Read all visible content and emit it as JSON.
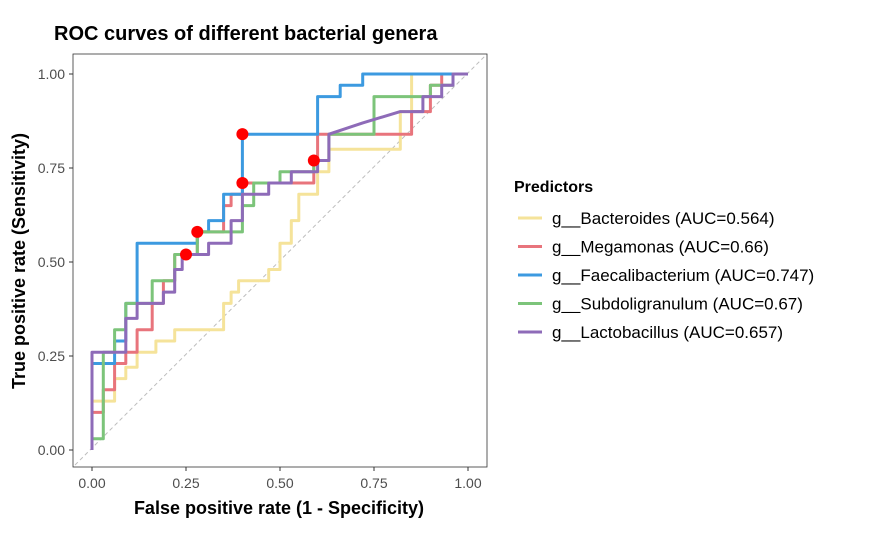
{
  "chart_data": {
    "type": "line",
    "title": "ROC curves of different bacterial genera",
    "xlabel": "False positive rate (1 - Specificity)",
    "ylabel": "True positive rate (Sensitivity)",
    "xlim": [
      0,
      1
    ],
    "ylim": [
      0,
      1
    ],
    "xticks": [
      0,
      0.25,
      0.5,
      0.75,
      1
    ],
    "yticks": [
      0,
      0.25,
      0.5,
      0.75,
      1
    ],
    "xtick_labels": [
      "0.00",
      "0.25",
      "0.50",
      "0.75",
      "1.00"
    ],
    "ytick_labels": [
      "0.00",
      "0.25",
      "0.50",
      "0.75",
      "1.00"
    ],
    "grid": false,
    "diagonal_reference": true,
    "legend": {
      "title": "Predictors",
      "position": "right"
    },
    "series": [
      {
        "name": "g__Bacteroides (AUC=0.564)",
        "color": "#F5E39A",
        "points": [
          [
            0,
            0
          ],
          [
            0,
            0.13
          ],
          [
            0.02,
            0.13
          ],
          [
            0.02,
            0.13
          ],
          [
            0.06,
            0.13
          ],
          [
            0.06,
            0.19
          ],
          [
            0.09,
            0.19
          ],
          [
            0.09,
            0.22
          ],
          [
            0.12,
            0.22
          ],
          [
            0.12,
            0.26
          ],
          [
            0.17,
            0.26
          ],
          [
            0.17,
            0.29
          ],
          [
            0.22,
            0.29
          ],
          [
            0.22,
            0.32
          ],
          [
            0.35,
            0.32
          ],
          [
            0.35,
            0.39
          ],
          [
            0.37,
            0.39
          ],
          [
            0.37,
            0.42
          ],
          [
            0.39,
            0.42
          ],
          [
            0.39,
            0.45
          ],
          [
            0.47,
            0.45
          ],
          [
            0.47,
            0.48
          ],
          [
            0.5,
            0.48
          ],
          [
            0.5,
            0.55
          ],
          [
            0.53,
            0.55
          ],
          [
            0.53,
            0.61
          ],
          [
            0.55,
            0.61
          ],
          [
            0.55,
            0.68
          ],
          [
            0.6,
            0.68
          ],
          [
            0.6,
            0.74
          ],
          [
            0.63,
            0.74
          ],
          [
            0.63,
            0.8
          ],
          [
            0.82,
            0.8
          ],
          [
            0.82,
            0.9
          ],
          [
            0.85,
            0.9
          ],
          [
            0.85,
            1
          ],
          [
            1,
            1
          ]
        ]
      },
      {
        "name": "g__Megamonas (AUC=0.66)",
        "color": "#E8747C",
        "points": [
          [
            0,
            0
          ],
          [
            0,
            0.1
          ],
          [
            0.03,
            0.1
          ],
          [
            0.03,
            0.16
          ],
          [
            0.06,
            0.16
          ],
          [
            0.06,
            0.23
          ],
          [
            0.09,
            0.23
          ],
          [
            0.09,
            0.26
          ],
          [
            0.12,
            0.26
          ],
          [
            0.12,
            0.32
          ],
          [
            0.16,
            0.32
          ],
          [
            0.16,
            0.39
          ],
          [
            0.19,
            0.39
          ],
          [
            0.19,
            0.45
          ],
          [
            0.22,
            0.45
          ],
          [
            0.22,
            0.52
          ],
          [
            0.28,
            0.52
          ],
          [
            0.28,
            0.58
          ],
          [
            0.35,
            0.58
          ],
          [
            0.35,
            0.65
          ],
          [
            0.37,
            0.65
          ],
          [
            0.37,
            0.68
          ],
          [
            0.4,
            0.68
          ],
          [
            0.4,
            0.71
          ],
          [
            0.43,
            0.71
          ],
          [
            0.43,
            0.71
          ],
          [
            0.59,
            0.71
          ],
          [
            0.59,
            0.77
          ],
          [
            0.6,
            0.77
          ],
          [
            0.6,
            0.84
          ],
          [
            0.85,
            0.84
          ],
          [
            0.85,
            0.9
          ],
          [
            0.9,
            0.9
          ],
          [
            0.9,
            0.97
          ],
          [
            0.93,
            0.97
          ],
          [
            0.93,
            1
          ],
          [
            1,
            1
          ]
        ]
      },
      {
        "name": "g__Faecalibacterium (AUC=0.747)",
        "color": "#3C9AE0",
        "points": [
          [
            0,
            0
          ],
          [
            0,
            0.23
          ],
          [
            0.06,
            0.23
          ],
          [
            0.06,
            0.29
          ],
          [
            0.09,
            0.29
          ],
          [
            0.09,
            0.39
          ],
          [
            0.12,
            0.39
          ],
          [
            0.12,
            0.42
          ],
          [
            0.12,
            0.42
          ],
          [
            0.12,
            0.55
          ],
          [
            0.24,
            0.55
          ],
          [
            0.24,
            0.55
          ],
          [
            0.28,
            0.55
          ],
          [
            0.28,
            0.58
          ],
          [
            0.31,
            0.58
          ],
          [
            0.31,
            0.61
          ],
          [
            0.35,
            0.61
          ],
          [
            0.35,
            0.68
          ],
          [
            0.4,
            0.68
          ],
          [
            0.4,
            0.84
          ],
          [
            0.6,
            0.84
          ],
          [
            0.6,
            0.94
          ],
          [
            0.66,
            0.94
          ],
          [
            0.66,
            0.97
          ],
          [
            0.72,
            0.97
          ],
          [
            0.72,
            1
          ],
          [
            1,
            1
          ]
        ]
      },
      {
        "name": "g__Subdoligranulum (AUC=0.67)",
        "color": "#7CC47A",
        "points": [
          [
            0,
            0
          ],
          [
            0,
            0.03
          ],
          [
            0.03,
            0.03
          ],
          [
            0.03,
            0.26
          ],
          [
            0.06,
            0.26
          ],
          [
            0.06,
            0.32
          ],
          [
            0.09,
            0.32
          ],
          [
            0.09,
            0.39
          ],
          [
            0.16,
            0.39
          ],
          [
            0.16,
            0.45
          ],
          [
            0.22,
            0.45
          ],
          [
            0.22,
            0.52
          ],
          [
            0.28,
            0.52
          ],
          [
            0.28,
            0.58
          ],
          [
            0.4,
            0.58
          ],
          [
            0.4,
            0.65
          ],
          [
            0.43,
            0.65
          ],
          [
            0.43,
            0.71
          ],
          [
            0.5,
            0.71
          ],
          [
            0.5,
            0.74
          ],
          [
            0.59,
            0.74
          ],
          [
            0.59,
            0.77
          ],
          [
            0.63,
            0.77
          ],
          [
            0.63,
            0.84
          ],
          [
            0.75,
            0.84
          ],
          [
            0.75,
            0.94
          ],
          [
            0.9,
            0.94
          ],
          [
            0.9,
            0.97
          ],
          [
            0.96,
            0.97
          ],
          [
            0.96,
            1
          ],
          [
            1,
            1
          ]
        ]
      },
      {
        "name": "g__Lactobacillus (AUC=0.657)",
        "color": "#8E6BB8",
        "points": [
          [
            0,
            0
          ],
          [
            0,
            0.26
          ],
          [
            0.09,
            0.26
          ],
          [
            0.09,
            0.35
          ],
          [
            0.12,
            0.35
          ],
          [
            0.12,
            0.39
          ],
          [
            0.19,
            0.39
          ],
          [
            0.19,
            0.42
          ],
          [
            0.22,
            0.42
          ],
          [
            0.22,
            0.48
          ],
          [
            0.24,
            0.48
          ],
          [
            0.24,
            0.52
          ],
          [
            0.31,
            0.52
          ],
          [
            0.31,
            0.55
          ],
          [
            0.37,
            0.55
          ],
          [
            0.37,
            0.61
          ],
          [
            0.4,
            0.61
          ],
          [
            0.4,
            0.68
          ],
          [
            0.47,
            0.68
          ],
          [
            0.47,
            0.71
          ],
          [
            0.53,
            0.71
          ],
          [
            0.53,
            0.74
          ],
          [
            0.6,
            0.74
          ],
          [
            0.6,
            0.77
          ],
          [
            0.63,
            0.77
          ],
          [
            0.63,
            0.84
          ],
          [
            0.72,
            0.87
          ],
          [
            0.82,
            0.9
          ],
          [
            0.88,
            0.9
          ],
          [
            0.88,
            0.94
          ],
          [
            0.93,
            0.94
          ],
          [
            0.93,
            0.97
          ],
          [
            0.96,
            0.97
          ],
          [
            0.96,
            1
          ],
          [
            1,
            1
          ]
        ]
      }
    ],
    "cutoff_points": {
      "color": "#FF0000",
      "points": [
        [
          0.25,
          0.52
        ],
        [
          0.28,
          0.58
        ],
        [
          0.4,
          0.71
        ],
        [
          0.4,
          0.84
        ],
        [
          0.59,
          0.77
        ]
      ]
    }
  }
}
